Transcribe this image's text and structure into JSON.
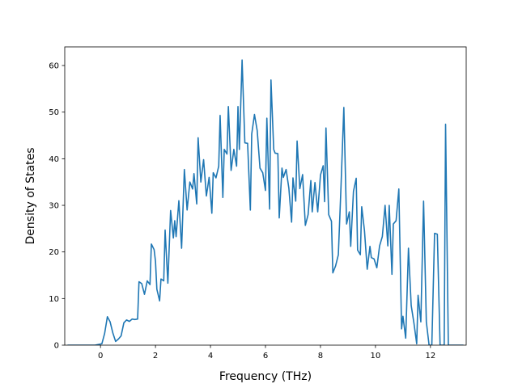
{
  "chart_data": {
    "type": "line",
    "title": "",
    "xlabel": "Frequency (THz)",
    "ylabel": "Density of States",
    "xlim": [
      -1.3,
      13.3
    ],
    "ylim": [
      0,
      64
    ],
    "x_ticks": [
      0,
      2,
      4,
      6,
      8,
      10,
      12
    ],
    "y_ticks": [
      0,
      10,
      20,
      30,
      40,
      50,
      60
    ],
    "grid": false,
    "legend": "none",
    "series": [
      {
        "color": "#1f77b4",
        "points": [
          [
            -1.2,
            0
          ],
          [
            -0.2,
            0
          ],
          [
            0.05,
            0.3
          ],
          [
            0.15,
            2.5
          ],
          [
            0.25,
            6.1
          ],
          [
            0.35,
            5.0
          ],
          [
            0.45,
            2.6
          ],
          [
            0.55,
            0.8
          ],
          [
            0.65,
            1.3
          ],
          [
            0.75,
            2.0
          ],
          [
            0.85,
            4.8
          ],
          [
            0.95,
            5.4
          ],
          [
            1.05,
            5.1
          ],
          [
            1.15,
            5.6
          ],
          [
            1.25,
            5.5
          ],
          [
            1.35,
            5.6
          ],
          [
            1.4,
            13.6
          ],
          [
            1.5,
            13.2
          ],
          [
            1.6,
            10.9
          ],
          [
            1.7,
            13.8
          ],
          [
            1.8,
            13.0
          ],
          [
            1.85,
            21.7
          ],
          [
            1.95,
            20.5
          ],
          [
            2.0,
            18.0
          ],
          [
            2.05,
            12.0
          ],
          [
            2.15,
            9.5
          ],
          [
            2.2,
            14.2
          ],
          [
            2.3,
            13.8
          ],
          [
            2.35,
            24.7
          ],
          [
            2.45,
            13.3
          ],
          [
            2.55,
            28.9
          ],
          [
            2.65,
            23.0
          ],
          [
            2.7,
            26.7
          ],
          [
            2.75,
            23.3
          ],
          [
            2.85,
            31.0
          ],
          [
            2.95,
            20.8
          ],
          [
            3.05,
            37.7
          ],
          [
            3.15,
            29.0
          ],
          [
            3.25,
            35.0
          ],
          [
            3.35,
            33.5
          ],
          [
            3.4,
            36.8
          ],
          [
            3.5,
            30.3
          ],
          [
            3.55,
            44.5
          ],
          [
            3.65,
            35.0
          ],
          [
            3.75,
            39.8
          ],
          [
            3.85,
            32.0
          ],
          [
            3.95,
            36.0
          ],
          [
            4.05,
            28.3
          ],
          [
            4.1,
            37.0
          ],
          [
            4.2,
            35.9
          ],
          [
            4.3,
            38.4
          ],
          [
            4.35,
            49.3
          ],
          [
            4.45,
            31.7
          ],
          [
            4.5,
            42.0
          ],
          [
            4.6,
            41.0
          ],
          [
            4.65,
            51.2
          ],
          [
            4.75,
            37.5
          ],
          [
            4.85,
            42.0
          ],
          [
            4.95,
            38.4
          ],
          [
            5.0,
            51.2
          ],
          [
            5.05,
            42.0
          ],
          [
            5.15,
            61.2
          ],
          [
            5.25,
            43.4
          ],
          [
            5.35,
            43.3
          ],
          [
            5.45,
            29.0
          ],
          [
            5.5,
            45.3
          ],
          [
            5.6,
            49.5
          ],
          [
            5.7,
            46.0
          ],
          [
            5.8,
            38.0
          ],
          [
            5.9,
            37.0
          ],
          [
            6.0,
            33.2
          ],
          [
            6.05,
            48.7
          ],
          [
            6.15,
            29.2
          ],
          [
            6.2,
            56.9
          ],
          [
            6.3,
            42.0
          ],
          [
            6.35,
            41.2
          ],
          [
            6.45,
            41.1
          ],
          [
            6.5,
            27.3
          ],
          [
            6.6,
            38.0
          ],
          [
            6.65,
            36.0
          ],
          [
            6.75,
            37.7
          ],
          [
            6.85,
            33.7
          ],
          [
            6.95,
            26.4
          ],
          [
            7.0,
            35.9
          ],
          [
            7.1,
            30.9
          ],
          [
            7.15,
            43.8
          ],
          [
            7.25,
            33.6
          ],
          [
            7.35,
            36.6
          ],
          [
            7.45,
            25.7
          ],
          [
            7.55,
            28.0
          ],
          [
            7.65,
            35.3
          ],
          [
            7.7,
            28.6
          ],
          [
            7.8,
            34.9
          ],
          [
            7.9,
            28.6
          ],
          [
            8.0,
            36.5
          ],
          [
            8.1,
            38.5
          ],
          [
            8.15,
            30.8
          ],
          [
            8.2,
            46.6
          ],
          [
            8.3,
            28.0
          ],
          [
            8.4,
            26.6
          ],
          [
            8.45,
            15.5
          ],
          [
            8.55,
            17.0
          ],
          [
            8.65,
            19.4
          ],
          [
            8.75,
            34.5
          ],
          [
            8.85,
            51.0
          ],
          [
            8.95,
            26.0
          ],
          [
            9.05,
            28.6
          ],
          [
            9.1,
            21.2
          ],
          [
            9.2,
            33.0
          ],
          [
            9.3,
            35.8
          ],
          [
            9.35,
            20.4
          ],
          [
            9.45,
            19.4
          ],
          [
            9.5,
            29.7
          ],
          [
            9.6,
            24.6
          ],
          [
            9.7,
            16.3
          ],
          [
            9.8,
            21.2
          ],
          [
            9.85,
            18.8
          ],
          [
            9.95,
            18.5
          ],
          [
            10.05,
            16.6
          ],
          [
            10.15,
            21.3
          ],
          [
            10.25,
            23.3
          ],
          [
            10.35,
            30.0
          ],
          [
            10.45,
            21.3
          ],
          [
            10.5,
            30.0
          ],
          [
            10.6,
            15.2
          ],
          [
            10.65,
            26.0
          ],
          [
            10.75,
            26.7
          ],
          [
            10.85,
            33.5
          ],
          [
            10.95,
            3.5
          ],
          [
            11.0,
            6.2
          ],
          [
            11.1,
            1.5
          ],
          [
            11.2,
            20.8
          ],
          [
            11.3,
            8.5
          ],
          [
            11.4,
            4.7
          ],
          [
            11.5,
            0.3
          ],
          [
            11.55,
            10.7
          ],
          [
            11.65,
            5.0
          ],
          [
            11.75,
            30.9
          ],
          [
            11.85,
            5.0
          ],
          [
            11.95,
            0
          ],
          [
            12.05,
            0
          ],
          [
            12.15,
            24.0
          ],
          [
            12.25,
            23.8
          ],
          [
            12.35,
            0
          ],
          [
            12.5,
            0
          ],
          [
            12.55,
            47.4
          ],
          [
            12.65,
            0
          ],
          [
            12.75,
            0
          ],
          [
            13.2,
            0
          ]
        ]
      }
    ]
  }
}
